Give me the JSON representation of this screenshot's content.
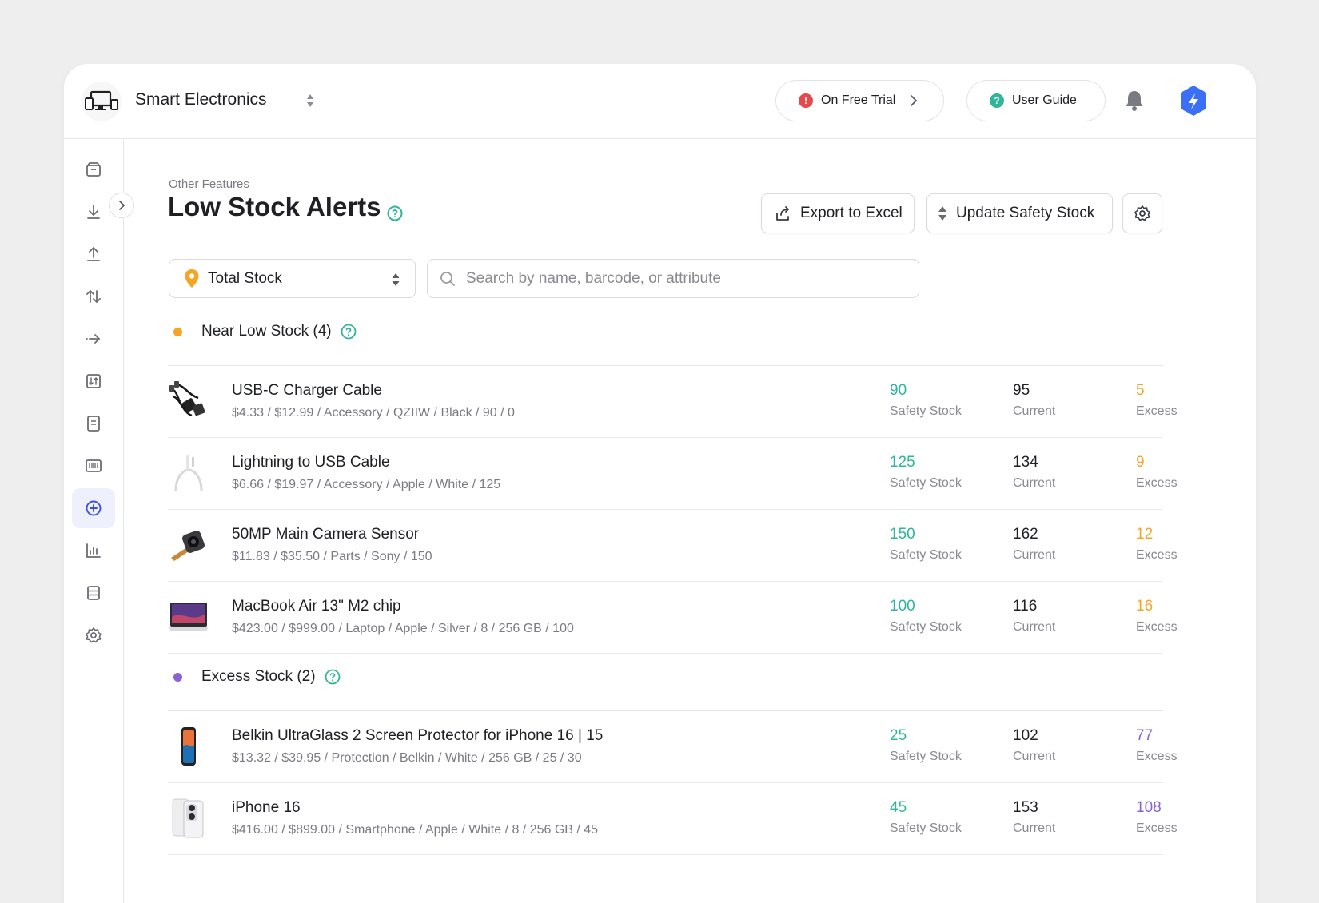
{
  "header": {
    "store_name": "Smart Electronics",
    "trial_label": "On Free Trial",
    "trial_badge": "!",
    "guide_label": "User Guide",
    "guide_badge": "?"
  },
  "page": {
    "breadcrumb": "Other Features",
    "title": "Low Stock Alerts",
    "export_label": "Export to Excel",
    "update_label": "Update Safety Stock"
  },
  "filters": {
    "location_value": "Total Stock",
    "search_placeholder": "Search by name, barcode, or attribute"
  },
  "sections": {
    "near": {
      "title": "Near Low Stock (4)",
      "color": "#f5a524",
      "items": [
        {
          "name": "USB-C Charger Cable",
          "meta": "$4.33 / $12.99 / Accessory / QZIIW / Black / 90 / 0",
          "safety": "90",
          "current": "95",
          "excess": "5"
        },
        {
          "name": "Lightning to USB Cable",
          "meta": "$6.66 / $19.97 / Accessory / Apple / White / 125",
          "safety": "125",
          "current": "134",
          "excess": "9"
        },
        {
          "name": "50MP Main Camera Sensor",
          "meta": "$11.83 / $35.50 / Parts / Sony / 150",
          "safety": "150",
          "current": "162",
          "excess": "12"
        },
        {
          "name": "MacBook Air 13\" M2 chip",
          "meta": "$423.00 / $999.00 / Laptop / Apple / Silver / 8 / 256 GB / 100",
          "safety": "100",
          "current": "116",
          "excess": "16"
        }
      ]
    },
    "excess": {
      "title": "Excess Stock (2)",
      "color": "#8a63d2",
      "items": [
        {
          "name": "Belkin UltraGlass 2 Screen Protector for iPhone 16 | 15",
          "meta": "$13.32 / $39.95 / Protection / Belkin / White / 256 GB / 25 / 30",
          "safety": "25",
          "current": "102",
          "excess": "77"
        },
        {
          "name": "iPhone 16",
          "meta": "$416.00 / $899.00 / Smartphone / Apple / White / 8 / 256 GB / 45",
          "safety": "45",
          "current": "153",
          "excess": "108"
        }
      ]
    }
  },
  "labels": {
    "safety": "Safety Stock",
    "current": "Current",
    "excess": "Excess"
  },
  "colors": {
    "accent_green": "#2fb69a",
    "warning_orange": "#f5a524",
    "excess_purple": "#8a63d2",
    "brand_blue": "#3b6ff5",
    "trial_red": "#e5484d"
  },
  "icons": {
    "sidebar": [
      "box-icon",
      "download-icon",
      "upload-icon",
      "transfer-icon",
      "move-icon",
      "adjust-icon",
      "document-icon",
      "barcode-icon",
      "add-circle-icon",
      "bar-chart-icon",
      "database-icon",
      "settings-icon"
    ]
  }
}
